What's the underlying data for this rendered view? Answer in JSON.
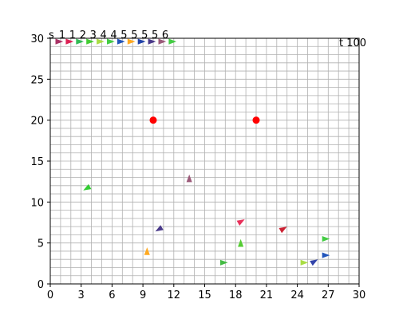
{
  "chart_data": {
    "type": "scatter",
    "title": "",
    "xlabel": "",
    "ylabel": "",
    "xlim": [
      0,
      30
    ],
    "ylim": [
      0,
      30
    ],
    "x_ticks": [
      0,
      3,
      6,
      9,
      12,
      15,
      18,
      21,
      24,
      27,
      30
    ],
    "y_ticks": [
      0,
      5,
      10,
      15,
      20,
      25,
      30
    ],
    "x_tick_labels": [
      "0",
      "3",
      "6",
      "9",
      "12",
      "15",
      "18",
      "21",
      "24",
      "27",
      "30"
    ],
    "y_tick_labels": [
      "0",
      "5",
      "10",
      "15",
      "20",
      "25",
      "30"
    ],
    "grid": true,
    "grid_step": 1,
    "time_label": "t 100",
    "top_labels": [
      "s",
      "1",
      "1",
      "2",
      "3",
      "4",
      "4",
      "5",
      "5",
      "5",
      "5",
      "6"
    ],
    "targets": [
      {
        "x": 10,
        "y": 20,
        "color": "#ff0000"
      },
      {
        "x": 20,
        "y": 20,
        "color": "#ff0000"
      }
    ],
    "agents": [
      {
        "x": 3.6,
        "y": 11.7,
        "heading": 210,
        "color": "#33cc33"
      },
      {
        "x": 13.5,
        "y": 12.8,
        "heading": 90,
        "color": "#9c5b7a"
      },
      {
        "x": 18.5,
        "y": 7.6,
        "heading": 30,
        "color": "#e8305a"
      },
      {
        "x": 10.6,
        "y": 6.7,
        "heading": 210,
        "color": "#4a3a8a"
      },
      {
        "x": 22.6,
        "y": 6.7,
        "heading": 30,
        "color": "#cc2233"
      },
      {
        "x": 26.7,
        "y": 5.5,
        "heading": 0,
        "color": "#44cc44"
      },
      {
        "x": 18.5,
        "y": 4.9,
        "heading": 90,
        "color": "#55cc33"
      },
      {
        "x": 9.4,
        "y": 3.9,
        "heading": 90,
        "color": "#ffaa22"
      },
      {
        "x": 26.7,
        "y": 3.5,
        "heading": 0,
        "color": "#2255bb"
      },
      {
        "x": 16.8,
        "y": 2.6,
        "heading": 0,
        "color": "#44bb44"
      },
      {
        "x": 24.6,
        "y": 2.6,
        "heading": 0,
        "color": "#aadd44"
      },
      {
        "x": 25.6,
        "y": 2.7,
        "heading": 30,
        "color": "#3344aa"
      }
    ],
    "top_markers": [
      {
        "x": 0.8,
        "color": "#aa3366"
      },
      {
        "x": 1.8,
        "color": "#dd2255"
      },
      {
        "x": 2.8,
        "color": "#33bb55"
      },
      {
        "x": 3.8,
        "color": "#44cc33"
      },
      {
        "x": 4.8,
        "color": "#aadd44"
      },
      {
        "x": 5.8,
        "color": "#44cc44"
      },
      {
        "x": 6.8,
        "color": "#2255bb"
      },
      {
        "x": 7.8,
        "color": "#ffaa22"
      },
      {
        "x": 8.8,
        "color": "#2244aa"
      },
      {
        "x": 9.8,
        "color": "#4a3a8a"
      },
      {
        "x": 10.8,
        "color": "#9c5b7a"
      },
      {
        "x": 11.8,
        "color": "#44cc44"
      }
    ]
  }
}
